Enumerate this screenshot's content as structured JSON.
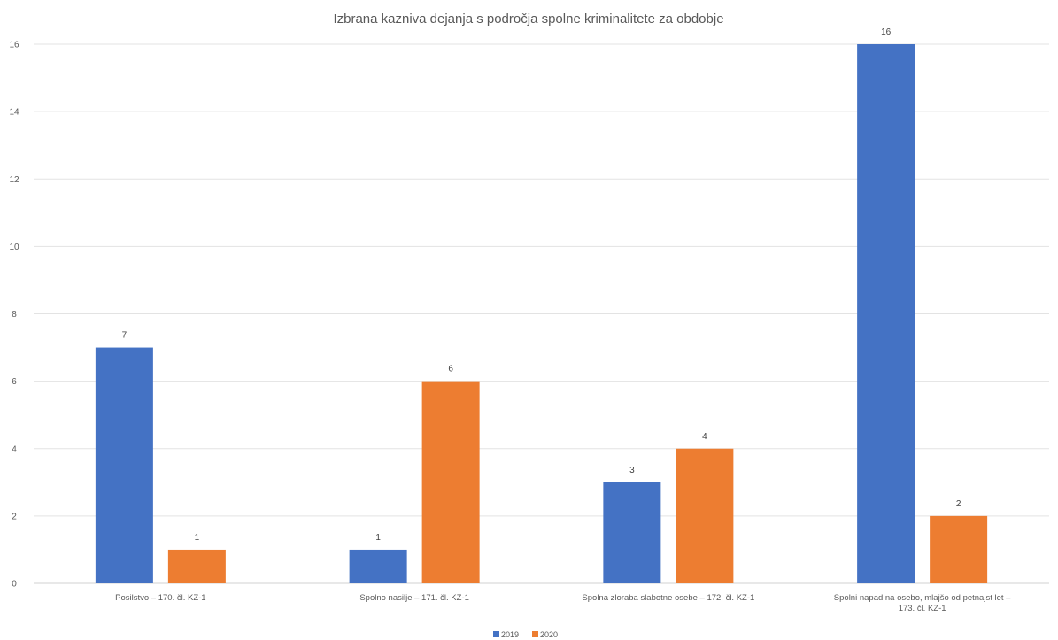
{
  "chart_data": {
    "type": "bar",
    "title": "Izbrana kazniva dejanja s področja spolne kriminalitete za obdobje",
    "categories": [
      "Posilstvo – 170. čl. KZ-1",
      "Spolno nasilje – 171. čl. KZ-1",
      "Spolna zloraba slabotne osebe – 172. čl. KZ-1",
      "Spolni napad na osebo,  mlajšo od petnajst let – 173. čl. KZ-1"
    ],
    "series": [
      {
        "name": "2019",
        "color": "#4472c4",
        "values": [
          7,
          1,
          3,
          16
        ]
      },
      {
        "name": "2020",
        "color": "#ed7d31",
        "values": [
          1,
          6,
          4,
          2
        ]
      }
    ],
    "ylim": [
      0,
      16
    ],
    "yticks": [
      0,
      2,
      4,
      6,
      8,
      10,
      12,
      14,
      16
    ],
    "grid": true,
    "data_labels": true,
    "legend": "bottom",
    "xlabel": "",
    "ylabel": ""
  }
}
